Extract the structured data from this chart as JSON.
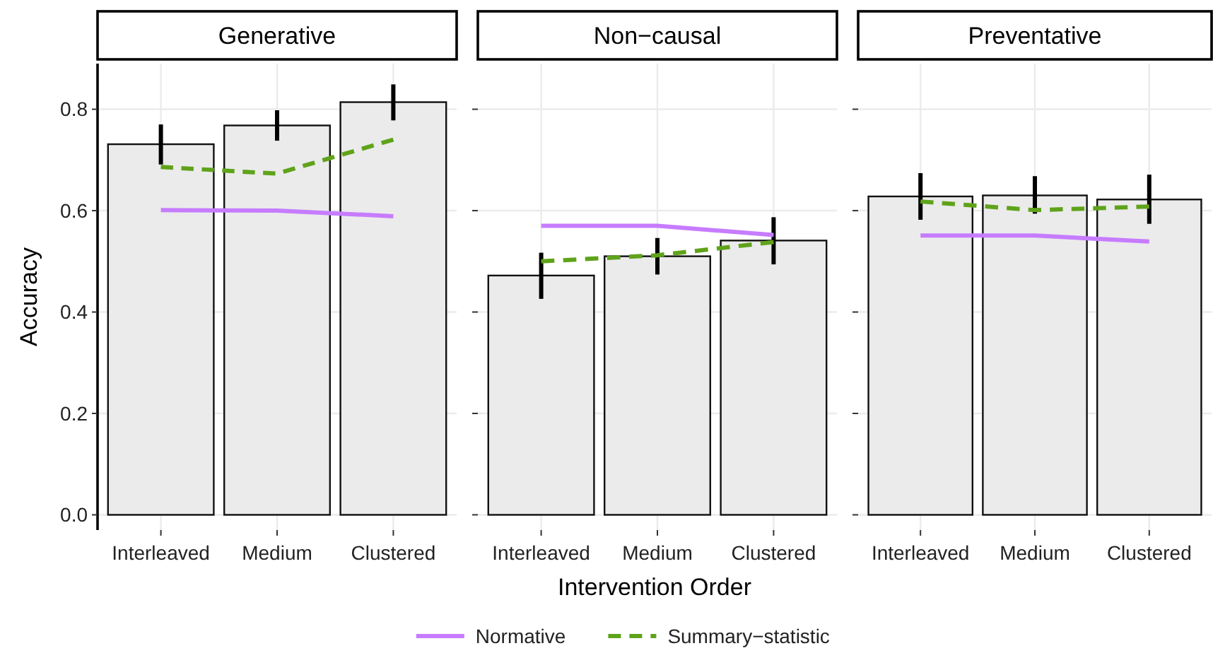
{
  "chart_data": [
    {
      "type": "bar",
      "title": "Generative",
      "ylabel": "Accuracy",
      "categories": [
        "Interleaved",
        "Medium",
        "Clustered"
      ],
      "ylim": [
        -0.03,
        0.89
      ],
      "yticks": [
        {
          "value": 0,
          "label": "0.0"
        },
        0.2,
        0.4,
        0.6,
        0.8
      ],
      "grid": true,
      "series": [
        {
          "color": "#ebebeb",
          "values": [
            0.731,
            0.768,
            0.814
          ],
          "errors": [
            [
              0.691,
              0.77
            ],
            [
              0.738,
              0.798
            ],
            [
              0.778,
              0.849
            ]
          ]
        },
        {
          "type": "line",
          "color": "#c77cff",
          "line_style": "solid",
          "values": [
            0.601,
            0.6,
            0.589
          ]
        },
        {
          "type": "line",
          "color": "#5fa31a",
          "line_style": "dashed",
          "values": [
            0.686,
            0.673,
            0.74
          ]
        }
      ]
    },
    {
      "type": "bar",
      "title": "Non−causal",
      "xlabel": "Intervention Order",
      "categories": [
        "Interleaved",
        "Medium",
        "Clustered"
      ],
      "ylim": [
        -0.03,
        0.89
      ],
      "yticks": [
        0,
        0.2,
        0.4,
        0.6,
        0.8
      ],
      "grid": true,
      "tick_labels": "x",
      "legend": "bottom",
      "series": [
        {
          "color": "#ebebeb",
          "values": [
            0.472,
            0.51,
            0.541
          ],
          "errors": [
            [
              0.426,
              0.517
            ],
            [
              0.474,
              0.546
            ],
            [
              0.494,
              0.587
            ]
          ]
        },
        {
          "type": "line",
          "name": "Normative",
          "color": "#c77cff",
          "line_style": "solid",
          "values": [
            0.57,
            0.57,
            0.552
          ]
        },
        {
          "type": "line",
          "name": "Summary−statistic",
          "color": "#5fa31a",
          "line_style": "dashed",
          "values": [
            0.5,
            0.512,
            0.538
          ]
        }
      ]
    },
    {
      "type": "bar",
      "title": "Preventative",
      "categories": [
        "Interleaved",
        "Medium",
        "Clustered"
      ],
      "ylim": [
        -0.03,
        0.89
      ],
      "yticks": [
        0,
        0.2,
        0.4,
        0.6,
        0.8
      ],
      "grid": true,
      "tick_labels": "x",
      "series": [
        {
          "color": "#ebebeb",
          "values": [
            0.628,
            0.63,
            0.622
          ],
          "errors": [
            [
              0.582,
              0.674
            ],
            [
              0.594,
              0.668
            ],
            [
              0.574,
              0.671
            ]
          ]
        },
        {
          "type": "line",
          "color": "#c77cff",
          "line_style": "solid",
          "values": [
            0.551,
            0.551,
            0.539
          ]
        },
        {
          "type": "line",
          "color": "#5fa31a",
          "line_style": "dashed",
          "values": [
            0.618,
            0.601,
            0.608
          ]
        }
      ]
    }
  ]
}
